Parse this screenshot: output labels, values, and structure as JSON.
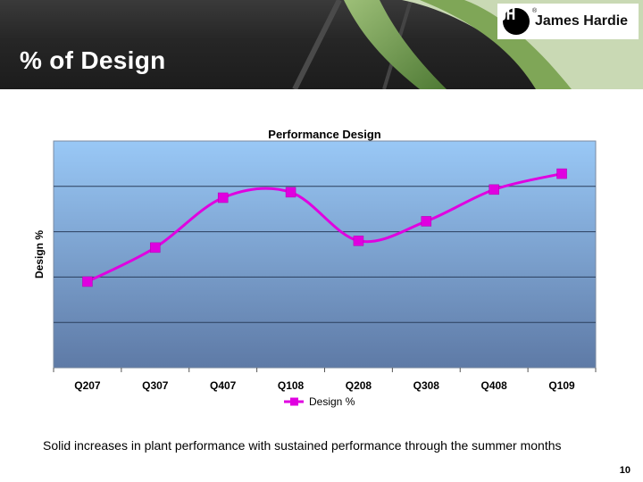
{
  "slide": {
    "title": "% of Design",
    "brand": "James Hardie",
    "caption": "Solid increases in plant performance with sustained performance through the summer months",
    "page_number": "10"
  },
  "colors": {
    "series": "#e000e0",
    "plot_top": "#99c8f6",
    "plot_bottom": "#5e7aa6",
    "gridline": "#2a3e5c"
  },
  "chart_data": {
    "type": "line",
    "title": "Performance Design",
    "xlabel": "",
    "ylabel": "Design %",
    "categories": [
      "Q207",
      "Q307",
      "Q407",
      "Q108",
      "Q208",
      "Q308",
      "Q408",
      "Q109"
    ],
    "series": [
      {
        "name": "Design %",
        "values": [
          1.9,
          2.65,
          3.75,
          3.87,
          2.8,
          3.23,
          3.93,
          4.28
        ]
      }
    ],
    "ylim": [
      0,
      5
    ],
    "y_tick_count": 5,
    "y_tick_labels_shown": false,
    "grid": true,
    "smooth": true,
    "marker": "square",
    "legend": "bottom"
  }
}
